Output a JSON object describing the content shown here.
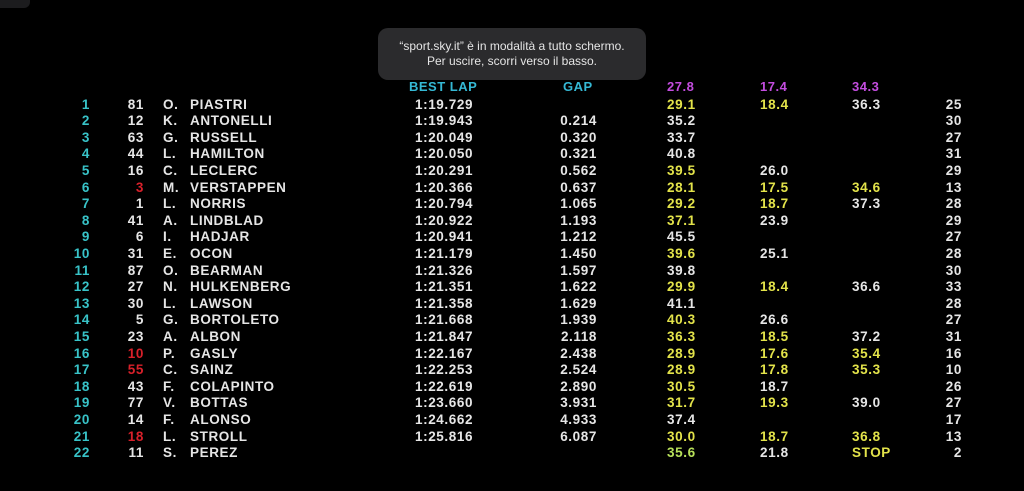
{
  "notification": {
    "line1": "“sport.sky.it” è in modalità a tutto schermo.",
    "line2": "Per uscire, scorri verso il basso."
  },
  "headers": {
    "best_lap": "BEST LAP",
    "gap": "GAP",
    "sector1_best": "27.8",
    "sector2_best": "17.4",
    "sector3_best": "34.3"
  },
  "colors": {
    "position": "#38c3c8",
    "header": "#35b8d4",
    "team_red": "#d8202a",
    "sector_yellow": "#e3e34a",
    "sector_green": "#b7e05a",
    "sector_purple": "#c44de0",
    "text": "#e6e6e6"
  },
  "rows": [
    {
      "pos": "1",
      "num": "81",
      "num_red": false,
      "ini": "O.",
      "name": "PIASTRI",
      "lap": "1:19.729",
      "gap": "",
      "s1": "29.1",
      "s1c": "yellow",
      "s2": "18.4",
      "s2c": "yellow",
      "s3": "36.3",
      "s3c": "white",
      "laps": "25"
    },
    {
      "pos": "2",
      "num": "12",
      "num_red": false,
      "ini": "K.",
      "name": "ANTONELLI",
      "lap": "1:19.943",
      "gap": "0.214",
      "s1": "35.2",
      "s1c": "white",
      "s2": "",
      "s2c": "white",
      "s3": "",
      "s3c": "white",
      "laps": "30"
    },
    {
      "pos": "3",
      "num": "63",
      "num_red": false,
      "ini": "G.",
      "name": "RUSSELL",
      "lap": "1:20.049",
      "gap": "0.320",
      "s1": "33.7",
      "s1c": "white",
      "s2": "",
      "s2c": "white",
      "s3": "",
      "s3c": "white",
      "laps": "27"
    },
    {
      "pos": "4",
      "num": "44",
      "num_red": false,
      "ini": "L.",
      "name": "HAMILTON",
      "lap": "1:20.050",
      "gap": "0.321",
      "s1": "40.8",
      "s1c": "white",
      "s2": "",
      "s2c": "white",
      "s3": "",
      "s3c": "white",
      "laps": "31"
    },
    {
      "pos": "5",
      "num": "16",
      "num_red": false,
      "ini": "C.",
      "name": "LECLERC",
      "lap": "1:20.291",
      "gap": "0.562",
      "s1": "39.5",
      "s1c": "yellow",
      "s2": "26.0",
      "s2c": "white",
      "s3": "",
      "s3c": "white",
      "laps": "29"
    },
    {
      "pos": "6",
      "num": "3",
      "num_red": true,
      "ini": "M.",
      "name": "VERSTAPPEN",
      "lap": "1:20.366",
      "gap": "0.637",
      "s1": "28.1",
      "s1c": "yellow",
      "s2": "17.5",
      "s2c": "yellow",
      "s3": "34.6",
      "s3c": "yellow",
      "laps": "13"
    },
    {
      "pos": "7",
      "num": "1",
      "num_red": false,
      "ini": "L.",
      "name": "NORRIS",
      "lap": "1:20.794",
      "gap": "1.065",
      "s1": "29.2",
      "s1c": "yellow",
      "s2": "18.7",
      "s2c": "yellow",
      "s3": "37.3",
      "s3c": "white",
      "laps": "28"
    },
    {
      "pos": "8",
      "num": "41",
      "num_red": false,
      "ini": "A.",
      "name": "LINDBLAD",
      "lap": "1:20.922",
      "gap": "1.193",
      "s1": "37.1",
      "s1c": "yellow",
      "s2": "23.9",
      "s2c": "white",
      "s3": "",
      "s3c": "white",
      "laps": "29"
    },
    {
      "pos": "9",
      "num": "6",
      "num_red": false,
      "ini": "I.",
      "name": "HADJAR",
      "lap": "1:20.941",
      "gap": "1.212",
      "s1": "45.5",
      "s1c": "white",
      "s2": "",
      "s2c": "white",
      "s3": "",
      "s3c": "white",
      "laps": "27"
    },
    {
      "pos": "10",
      "num": "31",
      "num_red": false,
      "ini": "E.",
      "name": "OCON",
      "lap": "1:21.179",
      "gap": "1.450",
      "s1": "39.6",
      "s1c": "yellow",
      "s2": "25.1",
      "s2c": "white",
      "s3": "",
      "s3c": "white",
      "laps": "28"
    },
    {
      "pos": "11",
      "num": "87",
      "num_red": false,
      "ini": "O.",
      "name": "BEARMAN",
      "lap": "1:21.326",
      "gap": "1.597",
      "s1": "39.8",
      "s1c": "white",
      "s2": "",
      "s2c": "white",
      "s3": "",
      "s3c": "white",
      "laps": "30"
    },
    {
      "pos": "12",
      "num": "27",
      "num_red": false,
      "ini": "N.",
      "name": "HULKENBERG",
      "lap": "1:21.351",
      "gap": "1.622",
      "s1": "29.9",
      "s1c": "yellow",
      "s2": "18.4",
      "s2c": "yellow",
      "s3": "36.6",
      "s3c": "white",
      "laps": "33"
    },
    {
      "pos": "13",
      "num": "30",
      "num_red": false,
      "ini": "L.",
      "name": "LAWSON",
      "lap": "1:21.358",
      "gap": "1.629",
      "s1": "41.1",
      "s1c": "white",
      "s2": "",
      "s2c": "white",
      "s3": "",
      "s3c": "white",
      "laps": "28"
    },
    {
      "pos": "14",
      "num": "5",
      "num_red": false,
      "ini": "G.",
      "name": "BORTOLETO",
      "lap": "1:21.668",
      "gap": "1.939",
      "s1": "40.3",
      "s1c": "yellow",
      "s2": "26.6",
      "s2c": "white",
      "s3": "",
      "s3c": "white",
      "laps": "27"
    },
    {
      "pos": "15",
      "num": "23",
      "num_red": false,
      "ini": "A.",
      "name": "ALBON",
      "lap": "1:21.847",
      "gap": "2.118",
      "s1": "36.3",
      "s1c": "yellow",
      "s2": "18.5",
      "s2c": "yellow",
      "s3": "37.2",
      "s3c": "white",
      "laps": "31"
    },
    {
      "pos": "16",
      "num": "10",
      "num_red": true,
      "ini": "P.",
      "name": "GASLY",
      "lap": "1:22.167",
      "gap": "2.438",
      "s1": "28.9",
      "s1c": "yellow",
      "s2": "17.6",
      "s2c": "yellow",
      "s3": "35.4",
      "s3c": "yellow",
      "laps": "16"
    },
    {
      "pos": "17",
      "num": "55",
      "num_red": true,
      "ini": "C.",
      "name": "SAINZ",
      "lap": "1:22.253",
      "gap": "2.524",
      "s1": "28.9",
      "s1c": "yellow",
      "s2": "17.8",
      "s2c": "yellow",
      "s3": "35.3",
      "s3c": "yellow",
      "laps": "10"
    },
    {
      "pos": "18",
      "num": "43",
      "num_red": false,
      "ini": "F.",
      "name": "COLAPINTO",
      "lap": "1:22.619",
      "gap": "2.890",
      "s1": "30.5",
      "s1c": "yellow",
      "s2": "18.7",
      "s2c": "white",
      "s3": "",
      "s3c": "white",
      "laps": "26"
    },
    {
      "pos": "19",
      "num": "77",
      "num_red": false,
      "ini": "V.",
      "name": "BOTTAS",
      "lap": "1:23.660",
      "gap": "3.931",
      "s1": "31.7",
      "s1c": "yellow",
      "s2": "19.3",
      "s2c": "yellow",
      "s3": "39.0",
      "s3c": "white",
      "laps": "27"
    },
    {
      "pos": "20",
      "num": "14",
      "num_red": false,
      "ini": "F.",
      "name": "ALONSO",
      "lap": "1:24.662",
      "gap": "4.933",
      "s1": "37.4",
      "s1c": "white",
      "s2": "",
      "s2c": "white",
      "s3": "",
      "s3c": "white",
      "laps": "17"
    },
    {
      "pos": "21",
      "num": "18",
      "num_red": true,
      "ini": "L.",
      "name": "STROLL",
      "lap": "1:25.816",
      "gap": "6.087",
      "s1": "30.0",
      "s1c": "yellow",
      "s2": "18.7",
      "s2c": "yellow",
      "s3": "36.8",
      "s3c": "yellow",
      "laps": "13"
    },
    {
      "pos": "22",
      "num": "11",
      "num_red": false,
      "ini": "S.",
      "name": "PEREZ",
      "lap": "",
      "gap": "",
      "s1": "35.6",
      "s1c": "green",
      "s2": "21.8",
      "s2c": "white",
      "s3": "STOP",
      "s3c": "yellow",
      "laps": "2"
    }
  ]
}
